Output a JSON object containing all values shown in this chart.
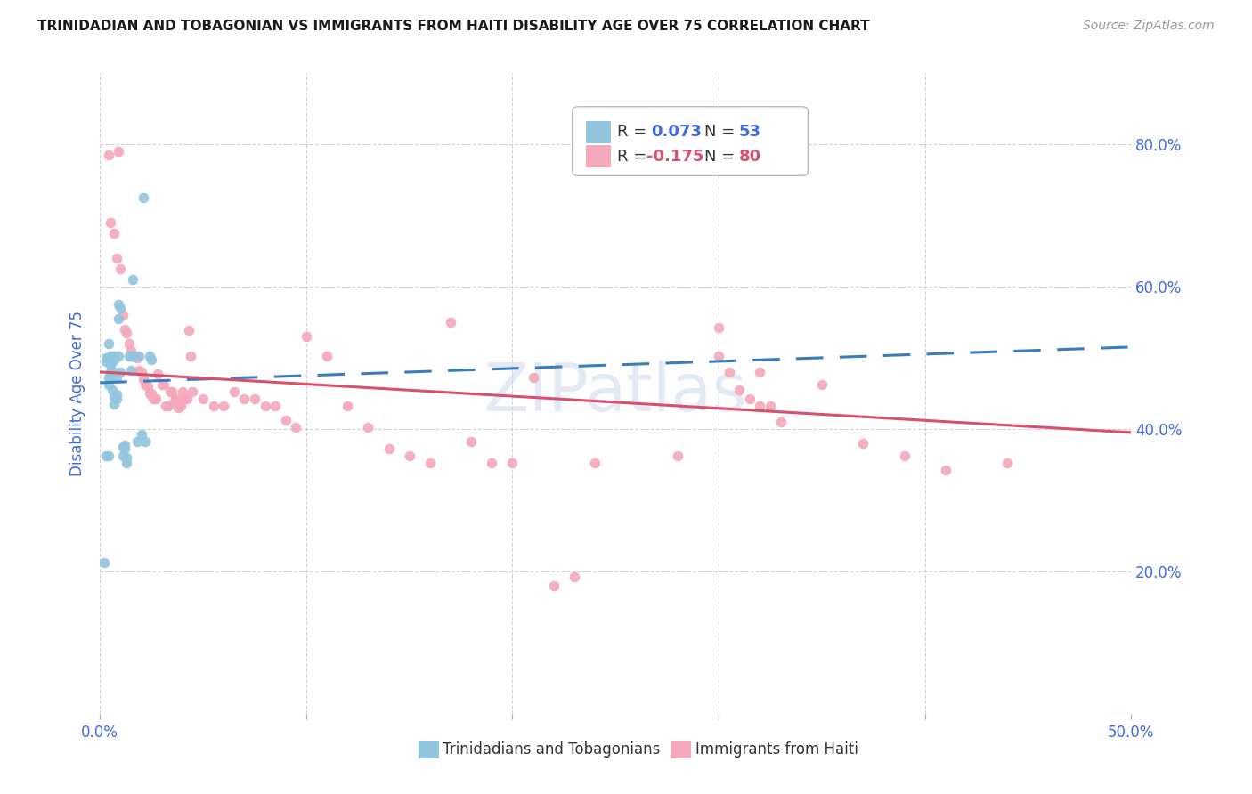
{
  "title": "TRINIDADIAN AND TOBAGONIAN VS IMMIGRANTS FROM HAITI DISABILITY AGE OVER 75 CORRELATION CHART",
  "source": "Source: ZipAtlas.com",
  "ylabel": "Disability Age Over 75",
  "xlim": [
    0.0,
    0.5
  ],
  "ylim": [
    0.0,
    0.9
  ],
  "ytick_positions": [
    0.2,
    0.4,
    0.6,
    0.8
  ],
  "ytick_labels": [
    "20.0%",
    "40.0%",
    "60.0%",
    "80.0%"
  ],
  "color_blue": "#92c5de",
  "color_pink": "#f4a8b8",
  "color_blue_line": "#3a7dbf",
  "color_pink_line": "#d94f6e",
  "color_axis_labels": "#4169E1",
  "background_color": "#ffffff",
  "grid_color": "#cccccc",
  "trinidadian_x": [
    0.006,
    0.021,
    0.003,
    0.016,
    0.004,
    0.004,
    0.005,
    0.004,
    0.003,
    0.005,
    0.006,
    0.005,
    0.004,
    0.004,
    0.005,
    0.006,
    0.006,
    0.006,
    0.007,
    0.007,
    0.007,
    0.008,
    0.008,
    0.008,
    0.009,
    0.009,
    0.01,
    0.01,
    0.011,
    0.011,
    0.012,
    0.012,
    0.013,
    0.013,
    0.014,
    0.015,
    0.015,
    0.016,
    0.018,
    0.019,
    0.02,
    0.022,
    0.024,
    0.025,
    0.003,
    0.004,
    0.005,
    0.006,
    0.007,
    0.007,
    0.009,
    0.002,
    0.016
  ],
  "trinidadian_y": [
    0.495,
    0.725,
    0.495,
    0.61,
    0.5,
    0.52,
    0.5,
    0.5,
    0.5,
    0.498,
    0.455,
    0.48,
    0.462,
    0.472,
    0.49,
    0.5,
    0.5,
    0.498,
    0.445,
    0.48,
    0.435,
    0.442,
    0.472,
    0.448,
    0.555,
    0.575,
    0.57,
    0.48,
    0.375,
    0.362,
    0.378,
    0.372,
    0.36,
    0.352,
    0.502,
    0.482,
    0.502,
    0.502,
    0.382,
    0.502,
    0.392,
    0.382,
    0.502,
    0.498,
    0.362,
    0.362,
    0.502,
    0.498,
    0.498,
    0.502,
    0.502,
    0.212,
    0.502
  ],
  "haiti_x": [
    0.004,
    0.009,
    0.005,
    0.007,
    0.008,
    0.01,
    0.011,
    0.012,
    0.013,
    0.014,
    0.015,
    0.016,
    0.017,
    0.018,
    0.019,
    0.02,
    0.021,
    0.022,
    0.023,
    0.024,
    0.025,
    0.026,
    0.027,
    0.028,
    0.03,
    0.031,
    0.032,
    0.033,
    0.034,
    0.035,
    0.036,
    0.037,
    0.038,
    0.039,
    0.04,
    0.041,
    0.042,
    0.043,
    0.044,
    0.045,
    0.05,
    0.055,
    0.06,
    0.065,
    0.07,
    0.075,
    0.08,
    0.085,
    0.09,
    0.095,
    0.1,
    0.11,
    0.12,
    0.13,
    0.14,
    0.15,
    0.16,
    0.17,
    0.18,
    0.19,
    0.2,
    0.21,
    0.22,
    0.23,
    0.24,
    0.28,
    0.3,
    0.32,
    0.35,
    0.37,
    0.39,
    0.41,
    0.44,
    0.3,
    0.305,
    0.31,
    0.315,
    0.32,
    0.325,
    0.33
  ],
  "haiti_y": [
    0.785,
    0.79,
    0.69,
    0.675,
    0.64,
    0.625,
    0.56,
    0.54,
    0.535,
    0.52,
    0.51,
    0.502,
    0.502,
    0.5,
    0.482,
    0.48,
    0.47,
    0.462,
    0.46,
    0.45,
    0.45,
    0.442,
    0.442,
    0.478,
    0.462,
    0.462,
    0.432,
    0.432,
    0.452,
    0.452,
    0.44,
    0.442,
    0.43,
    0.432,
    0.452,
    0.442,
    0.442,
    0.538,
    0.502,
    0.452,
    0.442,
    0.432,
    0.432,
    0.452,
    0.442,
    0.442,
    0.432,
    0.432,
    0.412,
    0.402,
    0.53,
    0.502,
    0.432,
    0.402,
    0.372,
    0.362,
    0.352,
    0.55,
    0.382,
    0.352,
    0.352,
    0.472,
    0.18,
    0.192,
    0.352,
    0.362,
    0.502,
    0.48,
    0.462,
    0.38,
    0.362,
    0.342,
    0.352,
    0.542,
    0.48,
    0.455,
    0.442,
    0.432,
    0.432,
    0.41
  ],
  "tri_trendline_x": [
    0.0,
    0.5
  ],
  "tri_trendline_y": [
    0.465,
    0.515
  ],
  "haiti_trendline_x": [
    0.0,
    0.5
  ],
  "haiti_trendline_y": [
    0.48,
    0.395
  ]
}
